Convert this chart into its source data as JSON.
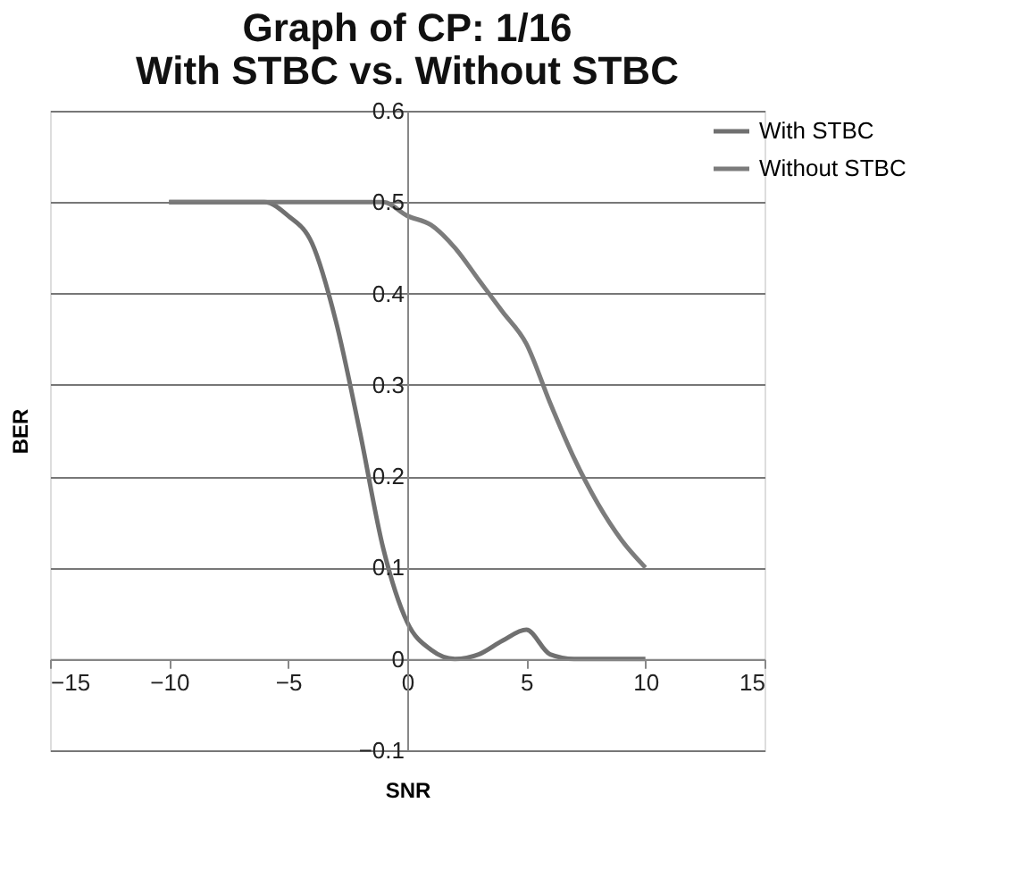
{
  "chart_data": {
    "type": "line",
    "title": "Graph of CP: 1/16\nWith STBC vs. Without STBC",
    "xlabel": "SNR",
    "ylabel": "BER",
    "x": [
      -10,
      -9,
      -8,
      -7,
      -6,
      -5,
      -4,
      -3,
      -2,
      -1,
      0,
      1,
      2,
      3,
      4,
      5,
      6,
      7,
      8,
      9,
      10
    ],
    "series": [
      {
        "name": "With STBC",
        "color": "#707070",
        "values": [
          0.5,
          0.5,
          0.5,
          0.5,
          0.5,
          0.485,
          0.455,
          0.37,
          0.25,
          0.12,
          0.04,
          0.01,
          0.0,
          0.005,
          0.02,
          0.032,
          0.005,
          0.0,
          0.0,
          0.0,
          0.0
        ]
      },
      {
        "name": "Without STBC",
        "color": "#7c7c7c",
        "values": [
          0.5,
          0.5,
          0.5,
          0.5,
          0.5,
          0.5,
          0.5,
          0.5,
          0.5,
          0.5,
          0.485,
          0.475,
          0.45,
          0.415,
          0.38,
          0.345,
          0.28,
          0.22,
          0.17,
          0.13,
          0.1
        ]
      }
    ],
    "xlim": [
      -15,
      15
    ],
    "xticks": [
      -15,
      -10,
      -5,
      0,
      5,
      10,
      15
    ],
    "ylim": [
      -0.1,
      0.6
    ],
    "yticks": [
      -0.1,
      0,
      0.1,
      0.2,
      0.3,
      0.4,
      0.5,
      0.6
    ],
    "grid": "y",
    "legend": "right",
    "marker": "none",
    "line_style": "solid"
  }
}
